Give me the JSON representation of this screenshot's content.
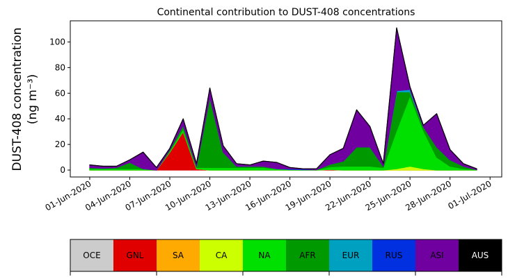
{
  "chart_data": {
    "type": "stacked_area",
    "title": "Continental contribution to DUST-408 concentrations",
    "y_label": [
      "DUST-408 concentration",
      "(ng m⁻³)"
    ],
    "x": [
      "2020-06-01",
      "2020-06-02",
      "2020-06-03",
      "2020-06-04",
      "2020-06-05",
      "2020-06-06",
      "2020-06-07",
      "2020-06-08",
      "2020-06-09",
      "2020-06-10",
      "2020-06-11",
      "2020-06-12",
      "2020-06-13",
      "2020-06-14",
      "2020-06-15",
      "2020-06-16",
      "2020-06-17",
      "2020-06-18",
      "2020-06-19",
      "2020-06-20",
      "2020-06-21",
      "2020-06-22",
      "2020-06-23",
      "2020-06-24",
      "2020-06-25",
      "2020-06-26",
      "2020-06-27",
      "2020-06-28",
      "2020-06-29",
      "2020-06-30"
    ],
    "xlim": [
      "2020-05-30T13:00:00Z",
      "2020-07-01T21:00:00Z"
    ],
    "xticks": [
      {
        "value": "2020-06-01",
        "label": "01-Jun-2020"
      },
      {
        "value": "2020-06-04",
        "label": "04-Jun-2020"
      },
      {
        "value": "2020-06-07",
        "label": "07-Jun-2020"
      },
      {
        "value": "2020-06-10",
        "label": "10-Jun-2020"
      },
      {
        "value": "2020-06-13",
        "label": "13-Jun-2020"
      },
      {
        "value": "2020-06-16",
        "label": "16-Jun-2020"
      },
      {
        "value": "2020-06-19",
        "label": "19-Jun-2020"
      },
      {
        "value": "2020-06-22",
        "label": "22-Jun-2020"
      },
      {
        "value": "2020-06-25",
        "label": "25-Jun-2020"
      },
      {
        "value": "2020-06-28",
        "label": "28-Jun-2020"
      },
      {
        "value": "2020-07-01",
        "label": "01-Jul-2020"
      }
    ],
    "ylim": [
      -5.4,
      116.5
    ],
    "yticks": [
      0,
      20,
      40,
      60,
      80,
      100
    ],
    "series": [
      {
        "name": "OCE",
        "color": "#cccccc",
        "values": [
          0,
          0,
          0,
          0,
          0,
          0,
          0,
          0,
          0,
          0,
          0,
          0,
          0,
          0,
          0,
          0,
          0,
          0,
          0,
          0,
          0,
          0,
          0,
          0,
          0,
          0,
          0,
          0,
          0,
          0
        ]
      },
      {
        "name": "GNL",
        "color": "#e00000",
        "values": [
          0,
          0,
          0,
          0,
          0,
          0,
          14,
          30,
          1,
          0,
          0,
          0,
          0,
          0,
          0,
          0,
          0,
          0,
          0.5,
          0,
          0,
          0,
          0,
          0,
          0,
          0,
          0,
          0,
          0,
          0
        ]
      },
      {
        "name": "SA",
        "color": "#ffaa00",
        "values": [
          0,
          0,
          0,
          0,
          0,
          0,
          0,
          0,
          0,
          0,
          0,
          0,
          0,
          0,
          0,
          0,
          0,
          0,
          0,
          0,
          0,
          0,
          0,
          0,
          0,
          0,
          0,
          0,
          0,
          0
        ]
      },
      {
        "name": "CA",
        "color": "#ccff00",
        "values": [
          0,
          0,
          0,
          0,
          0,
          0,
          0,
          0,
          0,
          0,
          0,
          0,
          0,
          0,
          0,
          0,
          0,
          0,
          0,
          0,
          0,
          0,
          0,
          1,
          3,
          1,
          0,
          0,
          0,
          0
        ]
      },
      {
        "name": "NA",
        "color": "#00e000",
        "values": [
          1,
          1,
          1,
          1,
          1,
          0,
          1,
          2,
          1,
          2,
          2,
          2,
          2,
          2,
          1,
          0.5,
          0.3,
          0.3,
          2,
          3,
          3,
          3,
          2,
          30,
          55,
          30,
          10,
          3,
          1,
          0.3
        ]
      },
      {
        "name": "AFR",
        "color": "#009a00",
        "values": [
          1,
          0.5,
          1,
          5,
          0,
          0,
          1,
          3,
          1,
          55,
          12,
          1,
          1,
          1,
          0,
          0,
          0,
          0,
          2,
          4,
          15,
          15,
          1,
          30,
          3,
          3,
          8,
          5,
          2,
          0
        ]
      },
      {
        "name": "EUR",
        "color": "#00a0c0",
        "values": [
          0,
          0,
          0,
          0,
          0,
          0,
          0,
          0,
          0,
          0,
          0,
          0,
          0,
          0,
          0,
          0,
          0,
          0,
          0,
          0,
          0,
          0,
          0,
          1,
          2,
          0,
          0,
          0,
          0,
          0
        ]
      },
      {
        "name": "RUS",
        "color": "#0030e0",
        "values": [
          0,
          0,
          0,
          0,
          0,
          0,
          0,
          0,
          0,
          0,
          0,
          0,
          0,
          0,
          0,
          0.5,
          0.5,
          0,
          0,
          0,
          0,
          0,
          0,
          0,
          0,
          0,
          0,
          0,
          0,
          0
        ]
      },
      {
        "name": "ASI",
        "color": "#7000a0",
        "values": [
          2,
          1.5,
          1,
          2,
          13,
          2,
          1,
          5,
          2,
          7,
          5,
          2,
          1,
          4,
          5,
          1,
          0.2,
          0.7,
          7.5,
          10,
          29,
          16,
          2,
          49,
          2,
          1,
          26,
          8,
          2,
          0.7
        ]
      },
      {
        "name": "AUS",
        "color": "#000000",
        "values": [
          0,
          0,
          0,
          0,
          0,
          0,
          0,
          0,
          0,
          0,
          0,
          0,
          0,
          0,
          0,
          0,
          0,
          0,
          0,
          0,
          0,
          0,
          0,
          0,
          0,
          0,
          0,
          0,
          0,
          0
        ]
      }
    ]
  }
}
